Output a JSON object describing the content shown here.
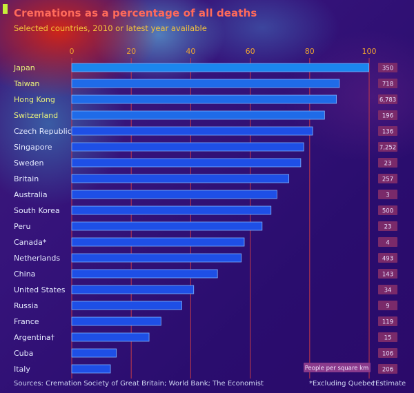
{
  "title": "Cremations as a percentage of all deaths",
  "subtitle": "Selected countries, 2010 or latest year available",
  "colors": {
    "title": "#ff6a5a",
    "subtitle": "#f6c43a",
    "bar": "#1e4fe6",
    "bar_highlight": "#29b6f0",
    "gridline": "#c23a4a",
    "density_box": "#7a2a6a"
  },
  "density_label": "People per square km",
  "footer": {
    "source": "Sources: Cremation Society of Great Britain; World Bank; The Economist",
    "note1": "*Excluding Quebec",
    "note2": "†Estimate"
  },
  "chart_data": {
    "type": "bar",
    "orientation": "horizontal",
    "xlim": [
      0,
      100
    ],
    "xticks": [
      "0",
      "20",
      "40",
      "60",
      "80",
      "100"
    ],
    "categories": [
      "Japan",
      "Taiwan",
      "Hong Kong",
      "Switzerland",
      "Czech Republic",
      "Singapore",
      "Sweden",
      "Britain",
      "Australia",
      "South Korea",
      "Peru",
      "Canada*",
      "Netherlands",
      "China",
      "United States",
      "Russia",
      "France",
      "Argentina†",
      "Cuba",
      "Italy"
    ],
    "values": [
      99.9,
      90,
      89,
      85,
      81,
      78,
      77,
      73,
      69,
      67,
      64,
      58,
      57,
      49,
      41,
      37,
      30,
      26,
      15,
      13
    ],
    "density": [
      "350",
      "718",
      "6,783",
      "196",
      "136",
      "7,252",
      "23",
      "257",
      "3",
      "500",
      "23",
      "4",
      "493",
      "143",
      "34",
      "9",
      "119",
      "15",
      "106",
      "206"
    ]
  }
}
